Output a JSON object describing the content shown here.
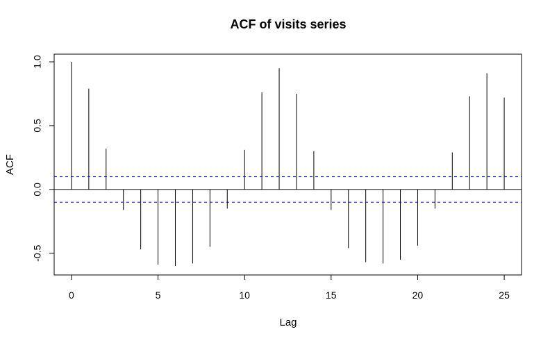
{
  "chart_data": {
    "type": "bar",
    "title": "ACF of visits series",
    "xlabel": "Lag",
    "ylabel": "ACF",
    "xlim": [
      -1,
      26
    ],
    "ylim": [
      -0.67,
      1.06
    ],
    "x_ticks": [
      0,
      5,
      10,
      15,
      20,
      25
    ],
    "y_ticks": [
      -0.5,
      0.0,
      0.5,
      1.0
    ],
    "x_tick_labels": [
      "0",
      "5",
      "10",
      "15",
      "20",
      "25"
    ],
    "y_tick_labels": [
      "-0.5",
      "0.0",
      "0.5",
      "1.0"
    ],
    "lags": [
      0,
      1,
      2,
      3,
      4,
      5,
      6,
      7,
      8,
      9,
      10,
      11,
      12,
      13,
      14,
      15,
      16,
      17,
      18,
      19,
      20,
      21,
      22,
      23,
      24,
      25
    ],
    "values": [
      1.0,
      0.79,
      0.32,
      -0.16,
      -0.47,
      -0.59,
      -0.6,
      -0.58,
      -0.45,
      -0.15,
      0.31,
      0.76,
      0.95,
      0.75,
      0.3,
      -0.16,
      -0.46,
      -0.57,
      -0.58,
      -0.55,
      -0.44,
      -0.15,
      0.29,
      0.73,
      0.91,
      0.72
    ],
    "confidence_bound": 0.1,
    "colors": {
      "bars": "#000000",
      "confidence": "#0000ff",
      "zero_line": "#000000"
    },
    "grid": false,
    "legend": "none"
  }
}
